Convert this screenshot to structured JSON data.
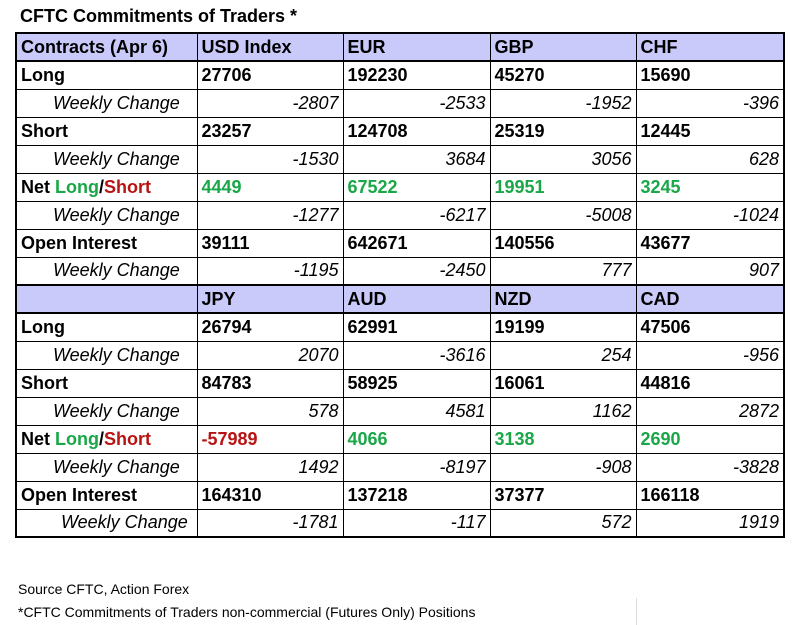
{
  "title": "CFTC Commitments of Traders *",
  "blocks": [
    {
      "header": [
        "Contracts (Apr 6)",
        "USD Index",
        "EUR",
        "GBP",
        "CHF"
      ],
      "long": [
        "27706",
        "192230",
        "45270",
        "15690"
      ],
      "long_chg": [
        "-2807",
        "-2533",
        "-1952",
        "-396"
      ],
      "short": [
        "23257",
        "124708",
        "25319",
        "12445"
      ],
      "short_chg": [
        "-1530",
        "3684",
        "3056",
        "628"
      ],
      "net": [
        "4449",
        "67522",
        "19951",
        "3245"
      ],
      "net_chg": [
        "-1277",
        "-6217",
        "-5008",
        "-1024"
      ],
      "oi": [
        "39111",
        "642671",
        "140556",
        "43677"
      ],
      "oi_chg": [
        "-1195",
        "-2450",
        "777",
        "907"
      ]
    },
    {
      "header": [
        "",
        "JPY",
        "AUD",
        "NZD",
        "CAD"
      ],
      "long": [
        "26794",
        "62991",
        "19199",
        "47506"
      ],
      "long_chg": [
        "2070",
        "-3616",
        "254",
        "-956"
      ],
      "short": [
        "84783",
        "58925",
        "16061",
        "44816"
      ],
      "short_chg": [
        "578",
        "4581",
        "1162",
        "2872"
      ],
      "net": [
        "-57989",
        "4066",
        "3138",
        "2690"
      ],
      "net_chg": [
        "1492",
        "-8197",
        "-908",
        "-3828"
      ],
      "oi": [
        "164310",
        "137218",
        "37377",
        "166118"
      ],
      "oi_chg": [
        "-1781",
        "-117",
        "572",
        "1919"
      ]
    }
  ],
  "labels": {
    "long": "Long",
    "short": "Short",
    "weekly_change": "Weekly Change",
    "net_prefix": "Net ",
    "net_long": "Long",
    "net_slash": "/",
    "net_short": "Short",
    "open_interest": "Open Interest"
  },
  "colors": {
    "header_bg": "#c9cafa",
    "positive": "#1aa748",
    "negative": "#b81414"
  },
  "footer": {
    "source": "Source CFTC, Action Forex",
    "note": "*CFTC Commitments of Traders non-commercial (Futures Only) Positions"
  }
}
